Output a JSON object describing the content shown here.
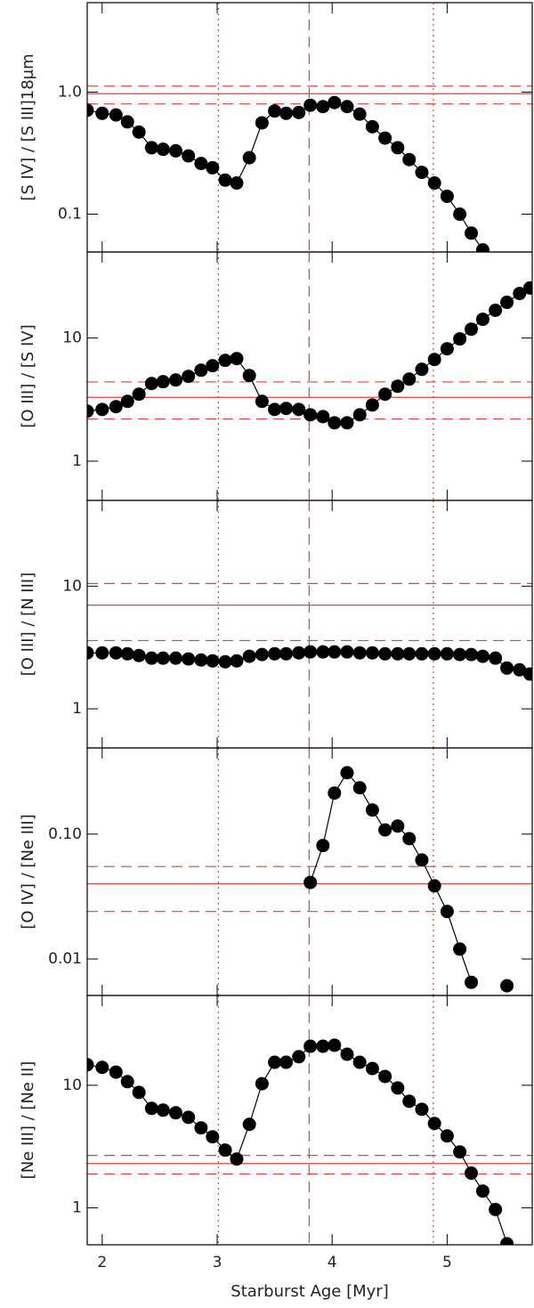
{
  "chart_data": [
    {
      "type": "line",
      "y_label": "[S IV] / [S III]18μm",
      "log_y": true,
      "color": "#000000",
      "ref_color": "#e0413c",
      "x": [
        1.87,
        2.0,
        2.12,
        2.22,
        2.32,
        2.43,
        2.53,
        2.64,
        2.75,
        2.86,
        2.96,
        3.07,
        3.17,
        3.28,
        3.39,
        3.5,
        3.6,
        3.71,
        3.81,
        3.92,
        4.02,
        4.13,
        4.24,
        4.35,
        4.46,
        4.57,
        4.67,
        4.78,
        4.89,
        5.0,
        5.11,
        5.21,
        5.31,
        5.42,
        5.52,
        5.63,
        5.72
      ],
      "values": [
        0.71,
        0.67,
        0.65,
        0.57,
        0.47,
        0.35,
        0.34,
        0.33,
        0.3,
        0.26,
        0.24,
        0.19,
        0.18,
        0.29,
        0.56,
        0.7,
        0.67,
        0.68,
        0.78,
        0.76,
        0.82,
        0.76,
        0.66,
        0.52,
        0.42,
        0.35,
        0.28,
        0.22,
        0.18,
        0.14,
        0.1,
        0.07,
        0.051,
        null,
        null,
        null,
        null
      ],
      "xlim": [
        1.87,
        5.74
      ],
      "xticks": [
        2,
        3,
        4,
        5
      ],
      "ylim": [
        0.049,
        5.4
      ],
      "yticks": [
        {
          "value": 1,
          "label": "1.0"
        },
        0.1
      ],
      "hlines": [
        {
          "value": 0.97,
          "style": "solid"
        },
        {
          "value": 1.12,
          "style": "dashed"
        },
        {
          "value": 0.8,
          "style": "dashed"
        }
      ],
      "vlines": [
        {
          "value": 3.01,
          "style": "dotted"
        },
        {
          "value": 3.8,
          "style": "dashed"
        },
        {
          "value": 4.88,
          "style": "dotted"
        }
      ]
    },
    {
      "type": "line",
      "y_label": "[O III] / [S IV]",
      "log_y": true,
      "color": "#000000",
      "ref_color": "#e0413c",
      "x": [
        1.87,
        2.0,
        2.12,
        2.22,
        2.32,
        2.43,
        2.53,
        2.64,
        2.75,
        2.86,
        2.96,
        3.07,
        3.17,
        3.28,
        3.39,
        3.5,
        3.6,
        3.71,
        3.81,
        3.92,
        4.02,
        4.13,
        4.24,
        4.35,
        4.46,
        4.57,
        4.67,
        4.78,
        4.89,
        5.0,
        5.11,
        5.21,
        5.31,
        5.42,
        5.52,
        5.63,
        5.72
      ],
      "values": [
        2.55,
        2.63,
        2.77,
        3.06,
        3.5,
        4.27,
        4.42,
        4.56,
        4.88,
        5.48,
        5.96,
        6.59,
        6.81,
        4.96,
        3.06,
        2.63,
        2.68,
        2.63,
        2.38,
        2.3,
        2.05,
        2.05,
        2.38,
        2.86,
        3.5,
        4.06,
        4.64,
        5.57,
        6.7,
        8.18,
        9.83,
        11.8,
        14.2,
        16.8,
        19.5,
        23.0,
        25.5
      ],
      "xlim": [
        1.87,
        5.74
      ],
      "xticks": [
        2,
        3,
        4,
        5
      ],
      "ylim": [
        0.48,
        50
      ],
      "yticks": [
        10,
        1
      ],
      "hlines": [
        {
          "value": 3.3,
          "style": "solid"
        },
        {
          "value": 4.4,
          "style": "dashed"
        },
        {
          "value": 2.2,
          "style": "dashed"
        }
      ],
      "vlines": [
        {
          "value": 3.01,
          "style": "dotted"
        },
        {
          "value": 3.8,
          "style": "dashed"
        },
        {
          "value": 4.88,
          "style": "dotted"
        }
      ]
    },
    {
      "type": "line",
      "y_label": "[O III] / [N III]",
      "log_y": true,
      "color": "#000000",
      "ref_color": "#e0413c",
      "x": [
        1.87,
        2.0,
        2.12,
        2.22,
        2.32,
        2.43,
        2.53,
        2.64,
        2.75,
        2.86,
        2.96,
        3.07,
        3.17,
        3.28,
        3.39,
        3.5,
        3.6,
        3.71,
        3.81,
        3.92,
        4.02,
        4.13,
        4.24,
        4.35,
        4.46,
        4.57,
        4.67,
        4.78,
        4.89,
        5.0,
        5.11,
        5.21,
        5.31,
        5.42,
        5.52,
        5.63,
        5.72
      ],
      "values": [
        2.86,
        2.86,
        2.86,
        2.81,
        2.72,
        2.59,
        2.59,
        2.59,
        2.55,
        2.5,
        2.46,
        2.42,
        2.46,
        2.68,
        2.77,
        2.81,
        2.81,
        2.86,
        2.91,
        2.91,
        2.91,
        2.91,
        2.86,
        2.86,
        2.81,
        2.81,
        2.81,
        2.81,
        2.81,
        2.81,
        2.77,
        2.77,
        2.68,
        2.59,
        2.15,
        2.08,
        1.92
      ],
      "xlim": [
        1.87,
        5.74
      ],
      "xticks": [
        2,
        3,
        4,
        5
      ],
      "ylim": [
        0.48,
        50
      ],
      "yticks": [
        10,
        1
      ],
      "hlines": [
        {
          "value": 7.0,
          "style": "solid"
        },
        {
          "value": 10.5,
          "style": "dashed"
        },
        {
          "value": 3.6,
          "style": "dashed"
        }
      ],
      "vlines": [
        {
          "value": 3.01,
          "style": "dotted"
        },
        {
          "value": 3.8,
          "style": "dashed"
        },
        {
          "value": 4.88,
          "style": "dotted"
        }
      ]
    },
    {
      "type": "line",
      "y_label": "[O IV] / [Ne III]",
      "log_y": true,
      "color": "#000000",
      "ref_color": "#e0413c",
      "x": [
        1.87,
        2.0,
        2.12,
        2.22,
        2.32,
        2.43,
        2.53,
        2.64,
        2.75,
        2.86,
        2.96,
        3.07,
        3.17,
        3.28,
        3.39,
        3.5,
        3.6,
        3.71,
        3.81,
        3.92,
        4.02,
        4.13,
        4.24,
        4.35,
        4.46,
        4.57,
        4.67,
        4.78,
        4.89,
        5.0,
        5.11,
        5.21,
        5.31,
        5.42,
        5.52,
        5.63,
        5.72
      ],
      "values": [
        null,
        null,
        null,
        null,
        null,
        null,
        null,
        null,
        null,
        null,
        null,
        null,
        null,
        null,
        null,
        null,
        null,
        null,
        0.041,
        0.081,
        0.213,
        0.31,
        0.235,
        0.156,
        0.108,
        0.116,
        0.092,
        0.062,
        0.0385,
        0.024,
        0.012,
        0.0065,
        null,
        null,
        0.0061,
        null,
        null
      ],
      "xlim": [
        1.87,
        5.74
      ],
      "xticks": [
        2,
        3,
        4,
        5
      ],
      "ylim": [
        0.0051,
        0.49
      ],
      "yticks": [
        {
          "value": 0.1,
          "label": "0.10"
        },
        0.01
      ],
      "hlines": [
        {
          "value": 0.04,
          "style": "solid"
        },
        {
          "value": 0.055,
          "style": "dashed"
        },
        {
          "value": 0.024,
          "style": "dashed"
        }
      ],
      "vlines": [
        {
          "value": 3.01,
          "style": "dotted"
        },
        {
          "value": 3.8,
          "style": "dashed"
        },
        {
          "value": 4.88,
          "style": "dotted"
        }
      ]
    },
    {
      "type": "line",
      "y_label": "[Ne III] / [Ne II]",
      "x_label": "Starburst Age [Myr]",
      "log_y": true,
      "color": "#000000",
      "ref_color": "#e0413c",
      "x": [
        1.87,
        2.0,
        2.12,
        2.22,
        2.32,
        2.43,
        2.53,
        2.64,
        2.75,
        2.86,
        2.96,
        3.07,
        3.17,
        3.28,
        3.39,
        3.5,
        3.6,
        3.71,
        3.81,
        3.92,
        4.02,
        4.13,
        4.24,
        4.35,
        4.46,
        4.57,
        4.67,
        4.78,
        4.89,
        5.0,
        5.11,
        5.21,
        5.31,
        5.42,
        5.52,
        5.63,
        5.72
      ],
      "values": [
        14.7,
        14.0,
        12.8,
        10.7,
        8.75,
        6.48,
        6.27,
        5.96,
        5.48,
        4.49,
        3.8,
        2.96,
        2.5,
        4.8,
        10.3,
        15.4,
        15.4,
        17.1,
        20.8,
        20.8,
        21.2,
        17.9,
        15.4,
        13.7,
        11.8,
        9.5,
        7.4,
        6.37,
        4.88,
        3.86,
        2.86,
        1.92,
        1.37,
        0.97,
        0.51,
        null,
        null
      ],
      "xlim": [
        1.87,
        5.74
      ],
      "xticks": [
        2,
        3,
        4,
        5
      ],
      "ylim": [
        0.5,
        54
      ],
      "yticks": [
        10,
        1
      ],
      "hlines": [
        {
          "value": 2.3,
          "style": "solid"
        },
        {
          "value": 2.68,
          "style": "dashed"
        },
        {
          "value": 1.89,
          "style": "dashed"
        }
      ],
      "vlines": [
        {
          "value": 3.01,
          "style": "dotted"
        },
        {
          "value": 3.8,
          "style": "dashed"
        },
        {
          "value": 4.88,
          "style": "dotted"
        }
      ]
    }
  ]
}
